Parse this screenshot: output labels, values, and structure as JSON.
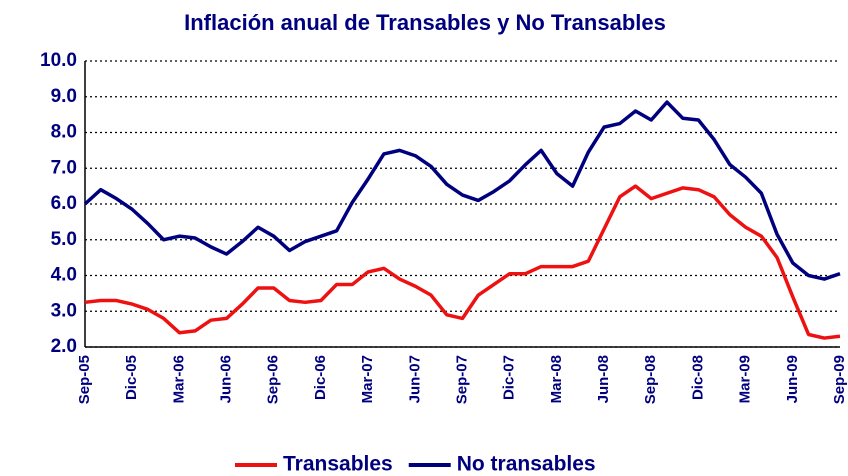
{
  "chart_data": {
    "type": "line",
    "title": "Inflación  anual de Transables y No Transables",
    "categories": [
      "Sep-05",
      null,
      null,
      "Dic-05",
      null,
      null,
      "Mar-06",
      null,
      null,
      "Jun-06",
      null,
      null,
      "Sep-06",
      null,
      null,
      "Dic-06",
      null,
      null,
      "Mar-07",
      null,
      null,
      "Jun-07",
      null,
      null,
      "Sep-07",
      null,
      null,
      "Dic-07",
      null,
      null,
      "Mar-08",
      null,
      null,
      "Jun-08",
      null,
      null,
      "Sep-08",
      null,
      null,
      "Dic-08",
      null,
      null,
      "Mar-09",
      null,
      null,
      "Jun-09",
      null,
      null,
      "Sep-09"
    ],
    "series": [
      {
        "name": "Transables",
        "color": "#ee1111",
        "values": [
          3.25,
          3.3,
          3.3,
          3.2,
          3.05,
          2.8,
          2.4,
          2.45,
          2.75,
          2.8,
          3.2,
          3.65,
          3.65,
          3.3,
          3.25,
          3.3,
          3.75,
          3.75,
          4.1,
          4.2,
          3.9,
          3.7,
          3.45,
          2.9,
          2.8,
          3.45,
          3.75,
          4.05,
          4.05,
          4.25,
          4.25,
          4.25,
          4.4,
          5.3,
          6.2,
          6.5,
          6.15,
          6.3,
          6.45,
          6.4,
          6.2,
          5.7,
          5.35,
          5.1,
          4.5,
          3.4,
          2.35,
          2.25,
          2.3
        ]
      },
      {
        "name": "No transables",
        "color": "#00007f",
        "values": [
          6.0,
          6.4,
          6.15,
          5.85,
          5.45,
          5.0,
          5.1,
          5.05,
          4.8,
          4.6,
          4.95,
          5.35,
          5.1,
          4.7,
          4.95,
          5.1,
          5.25,
          6.05,
          6.7,
          7.4,
          7.5,
          7.35,
          7.05,
          6.55,
          6.25,
          6.1,
          6.35,
          6.65,
          7.1,
          7.5,
          6.85,
          6.5,
          7.45,
          8.15,
          8.25,
          8.6,
          8.35,
          8.85,
          8.4,
          8.35,
          7.8,
          7.1,
          6.75,
          6.3,
          5.15,
          4.35,
          4.0,
          3.9,
          4.05
        ]
      }
    ],
    "ylim": [
      2,
      10
    ],
    "yticks": [
      {
        "value": 2,
        "label": "2.0"
      },
      {
        "value": 3,
        "label": "3.0"
      },
      {
        "value": 4,
        "label": "4.0"
      },
      {
        "value": 5,
        "label": "5.0"
      },
      {
        "value": 6,
        "label": "6.0"
      },
      {
        "value": 7,
        "label": "7.0"
      },
      {
        "value": 8,
        "label": "8.0"
      },
      {
        "value": 9,
        "label": "9.0"
      },
      {
        "value": 10,
        "label": "10.0"
      }
    ],
    "grid": true,
    "legend": "bottom"
  }
}
